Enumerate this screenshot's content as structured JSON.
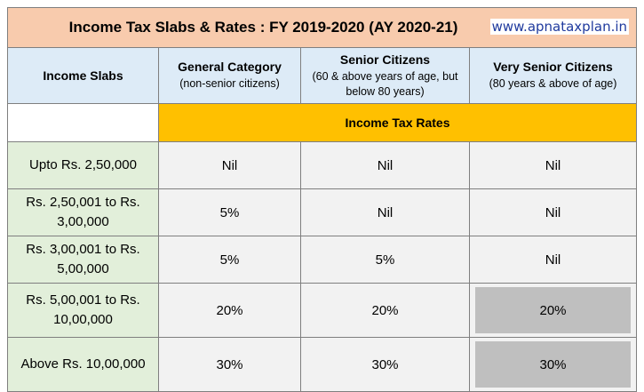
{
  "title": "Income Tax Slabs & Rates : FY 2019-2020 (AY 2020-21)",
  "watermark": "www.apnataxplan.in",
  "headers": {
    "slabs": "Income Slabs",
    "general": {
      "label": "General Category",
      "sub": "(non-senior citizens)"
    },
    "senior": {
      "label": "Senior Citizens",
      "sub": "(60 & above years of age, but below 80 years)"
    },
    "very_senior": {
      "label": "Very Senior Citizens",
      "sub": "(80 years & above of age)"
    }
  },
  "rates_label": "Income Tax Rates",
  "rows": [
    {
      "slab": "Upto Rs. 2,50,000",
      "general": "Nil",
      "senior": "Nil",
      "very_senior": "Nil"
    },
    {
      "slab": "Rs. 2,50,001 to Rs. 3,00,000",
      "general": "5%",
      "senior": "Nil",
      "very_senior": "Nil"
    },
    {
      "slab": "Rs. 3,00,001 to Rs. 5,00,000",
      "general": "5%",
      "senior": "5%",
      "very_senior": "Nil"
    },
    {
      "slab": "Rs. 5,00,001 to Rs. 10,00,000",
      "general": "20%",
      "senior": "20%",
      "very_senior": "20%"
    },
    {
      "slab": "Above Rs. 10,00,000",
      "general": "30%",
      "senior": "30%",
      "very_senior": "30%"
    }
  ],
  "colors": {
    "title_bg": "#f8cbad",
    "header_bg": "#ddebf7",
    "rates_bg": "#ffc000",
    "slab_bg": "#e2efda",
    "cell_bg": "#f2f2f2",
    "highlight_bg": "#bfbfbf"
  }
}
